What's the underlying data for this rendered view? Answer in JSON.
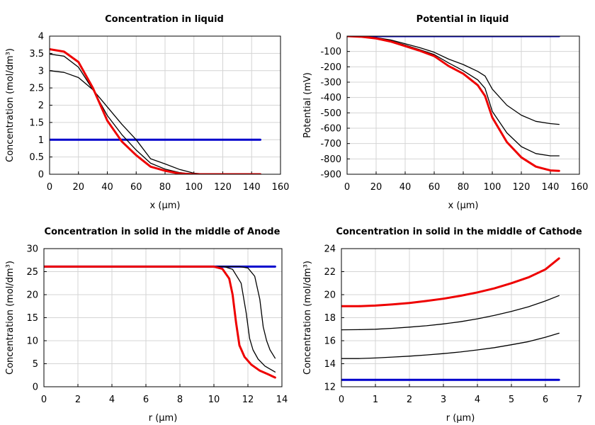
{
  "colors": {
    "red": "#ee0000",
    "blue": "#0000cc",
    "black": "#000000",
    "grid": "#d4d4d4"
  },
  "chart_data": [
    {
      "type": "line",
      "title": "Concentration in liquid",
      "xlabel": "x (µm)",
      "ylabel": "Concentration (mol/dm³)",
      "xlim": [
        0,
        160
      ],
      "ylim": [
        0,
        4
      ],
      "xticks": [
        0,
        20,
        40,
        60,
        80,
        100,
        120,
        140,
        160
      ],
      "yticks": [
        0,
        0.5,
        1,
        1.5,
        2,
        2.5,
        3,
        3.5,
        4
      ],
      "grid": true,
      "series": [
        {
          "color": "#0000cc",
          "width": 3,
          "points": [
            [
              0,
              1.0
            ],
            [
              146,
              1.0
            ]
          ]
        },
        {
          "color": "#000000",
          "width": 1.3,
          "points": [
            [
              0,
              3.0
            ],
            [
              10,
              2.95
            ],
            [
              20,
              2.8
            ],
            [
              30,
              2.45
            ],
            [
              40,
              1.95
            ],
            [
              50,
              1.45
            ],
            [
              60,
              1.0
            ],
            [
              70,
              0.45
            ],
            [
              80,
              0.3
            ],
            [
              90,
              0.14
            ],
            [
              100,
              0.03
            ],
            [
              110,
              0.0
            ],
            [
              146,
              0.0
            ]
          ]
        },
        {
          "color": "#000000",
          "width": 1.3,
          "points": [
            [
              0,
              3.48
            ],
            [
              10,
              3.42
            ],
            [
              20,
              3.1
            ],
            [
              30,
              2.45
            ],
            [
              40,
              1.7
            ],
            [
              50,
              1.15
            ],
            [
              60,
              0.7
            ],
            [
              70,
              0.32
            ],
            [
              80,
              0.15
            ],
            [
              90,
              0.05
            ],
            [
              100,
              0.0
            ],
            [
              146,
              0.0
            ]
          ]
        },
        {
          "color": "#ee0000",
          "width": 3,
          "points": [
            [
              0,
              3.62
            ],
            [
              10,
              3.55
            ],
            [
              20,
              3.25
            ],
            [
              30,
              2.5
            ],
            [
              40,
              1.55
            ],
            [
              50,
              0.95
            ],
            [
              60,
              0.55
            ],
            [
              70,
              0.22
            ],
            [
              80,
              0.1
            ],
            [
              90,
              0.02
            ],
            [
              100,
              0.0
            ],
            [
              146,
              0.0
            ]
          ]
        }
      ]
    },
    {
      "type": "line",
      "title": "Potential in liquid",
      "xlabel": "x (µm)",
      "ylabel": "Potential (mV)",
      "xlim": [
        0,
        160
      ],
      "ylim": [
        -900,
        0
      ],
      "xticks": [
        0,
        20,
        40,
        60,
        80,
        100,
        120,
        140,
        160
      ],
      "yticks": [
        0,
        -100,
        -200,
        -300,
        -400,
        -500,
        -600,
        -700,
        -800,
        -900
      ],
      "grid": true,
      "series": [
        {
          "color": "#0000cc",
          "width": 3,
          "points": [
            [
              0,
              0
            ],
            [
              146,
              0
            ]
          ]
        },
        {
          "color": "#000000",
          "width": 1.3,
          "points": [
            [
              0,
              0
            ],
            [
              10,
              -2
            ],
            [
              20,
              -10
            ],
            [
              30,
              -25
            ],
            [
              40,
              -50
            ],
            [
              50,
              -75
            ],
            [
              60,
              -105
            ],
            [
              70,
              -150
            ],
            [
              80,
              -185
            ],
            [
              90,
              -230
            ],
            [
              95,
              -260
            ],
            [
              100,
              -345
            ],
            [
              110,
              -450
            ],
            [
              120,
              -515
            ],
            [
              130,
              -555
            ],
            [
              140,
              -570
            ],
            [
              146,
              -575
            ]
          ]
        },
        {
          "color": "#000000",
          "width": 1.3,
          "points": [
            [
              0,
              0
            ],
            [
              10,
              -3
            ],
            [
              20,
              -12
            ],
            [
              30,
              -30
            ],
            [
              40,
              -58
            ],
            [
              50,
              -88
            ],
            [
              60,
              -120
            ],
            [
              70,
              -175
            ],
            [
              80,
              -225
            ],
            [
              90,
              -285
            ],
            [
              95,
              -340
            ],
            [
              100,
              -490
            ],
            [
              110,
              -630
            ],
            [
              120,
              -720
            ],
            [
              130,
              -765
            ],
            [
              140,
              -780
            ],
            [
              146,
              -780
            ]
          ]
        },
        {
          "color": "#ee0000",
          "width": 3,
          "points": [
            [
              0,
              0
            ],
            [
              10,
              -4
            ],
            [
              20,
              -15
            ],
            [
              30,
              -35
            ],
            [
              40,
              -65
            ],
            [
              50,
              -95
            ],
            [
              60,
              -130
            ],
            [
              70,
              -195
            ],
            [
              80,
              -245
            ],
            [
              90,
              -320
            ],
            [
              95,
              -390
            ],
            [
              100,
              -530
            ],
            [
              110,
              -690
            ],
            [
              120,
              -790
            ],
            [
              130,
              -850
            ],
            [
              140,
              -875
            ],
            [
              146,
              -878
            ]
          ]
        }
      ]
    },
    {
      "type": "line",
      "title": "Concentration in solid in the middle of Anode",
      "xlabel": "r (µm)",
      "ylabel": "Concentration (mol/dm³)",
      "xlim": [
        0,
        14
      ],
      "ylim": [
        0,
        30
      ],
      "xticks": [
        0,
        2,
        4,
        6,
        8,
        10,
        12,
        14
      ],
      "yticks": [
        0,
        5,
        10,
        15,
        20,
        25,
        30
      ],
      "grid": true,
      "series": [
        {
          "color": "#0000cc",
          "width": 3,
          "points": [
            [
              0,
              26.1
            ],
            [
              13.6,
              26.1
            ]
          ]
        },
        {
          "color": "#000000",
          "width": 1.3,
          "points": [
            [
              0,
              26.1
            ],
            [
              11.5,
              26.1
            ],
            [
              12.0,
              25.8
            ],
            [
              12.4,
              24.0
            ],
            [
              12.7,
              19.0
            ],
            [
              12.9,
              13.0
            ],
            [
              13.1,
              10.0
            ],
            [
              13.3,
              8.0
            ],
            [
              13.6,
              6.2
            ]
          ]
        },
        {
          "color": "#000000",
          "width": 1.3,
          "points": [
            [
              0,
              26.1
            ],
            [
              10.6,
              26.1
            ],
            [
              11.1,
              25.5
            ],
            [
              11.6,
              22.5
            ],
            [
              11.9,
              16.0
            ],
            [
              12.1,
              10.5
            ],
            [
              12.3,
              8.0
            ],
            [
              12.6,
              6.0
            ],
            [
              13.0,
              4.5
            ],
            [
              13.6,
              3.2
            ]
          ]
        },
        {
          "color": "#ee0000",
          "width": 3,
          "points": [
            [
              0,
              26.1
            ],
            [
              10.0,
              26.1
            ],
            [
              10.5,
              25.6
            ],
            [
              10.9,
              23.5
            ],
            [
              11.1,
              20.0
            ],
            [
              11.3,
              14.0
            ],
            [
              11.5,
              9.0
            ],
            [
              11.8,
              6.5
            ],
            [
              12.2,
              4.8
            ],
            [
              12.7,
              3.5
            ],
            [
              13.2,
              2.7
            ],
            [
              13.6,
              2.0
            ]
          ]
        }
      ]
    },
    {
      "type": "line",
      "title": "Concentration in solid in the middle of Cathode",
      "xlabel": "r (µm)",
      "ylabel": "Concentration (mol/dm³)",
      "xlim": [
        0,
        7
      ],
      "ylim": [
        12,
        24
      ],
      "xticks": [
        0,
        1,
        2,
        3,
        4,
        5,
        6,
        7
      ],
      "yticks": [
        12,
        14,
        16,
        18,
        20,
        22,
        24
      ],
      "grid": true,
      "series": [
        {
          "color": "#0000cc",
          "width": 3,
          "points": [
            [
              0,
              12.6
            ],
            [
              6.4,
              12.6
            ]
          ]
        },
        {
          "color": "#000000",
          "width": 1.3,
          "points": [
            [
              0,
              14.45
            ],
            [
              0.5,
              14.45
            ],
            [
              1,
              14.5
            ],
            [
              1.5,
              14.58
            ],
            [
              2,
              14.66
            ],
            [
              2.5,
              14.76
            ],
            [
              3,
              14.88
            ],
            [
              3.5,
              15.02
            ],
            [
              4,
              15.2
            ],
            [
              4.5,
              15.4
            ],
            [
              5,
              15.65
            ],
            [
              5.5,
              15.92
            ],
            [
              6,
              16.3
            ],
            [
              6.4,
              16.65
            ]
          ]
        },
        {
          "color": "#000000",
          "width": 1.3,
          "points": [
            [
              0,
              16.95
            ],
            [
              0.5,
              16.96
            ],
            [
              1,
              17.0
            ],
            [
              1.5,
              17.08
            ],
            [
              2,
              17.18
            ],
            [
              2.5,
              17.3
            ],
            [
              3,
              17.46
            ],
            [
              3.5,
              17.65
            ],
            [
              4,
              17.9
            ],
            [
              4.5,
              18.2
            ],
            [
              5,
              18.55
            ],
            [
              5.5,
              18.95
            ],
            [
              6,
              19.45
            ],
            [
              6.4,
              19.92
            ]
          ]
        },
        {
          "color": "#ee0000",
          "width": 3,
          "points": [
            [
              0,
              19.0
            ],
            [
              0.5,
              19.0
            ],
            [
              1,
              19.05
            ],
            [
              1.5,
              19.15
            ],
            [
              2,
              19.28
            ],
            [
              2.5,
              19.45
            ],
            [
              3,
              19.65
            ],
            [
              3.5,
              19.9
            ],
            [
              4,
              20.2
            ],
            [
              4.5,
              20.55
            ],
            [
              5,
              21.0
            ],
            [
              5.5,
              21.5
            ],
            [
              6,
              22.2
            ],
            [
              6.4,
              23.15
            ]
          ]
        }
      ]
    }
  ]
}
